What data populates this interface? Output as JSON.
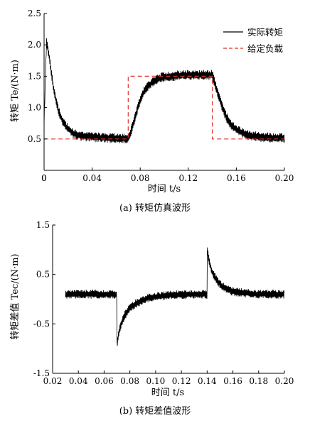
{
  "chart_data": [
    {
      "type": "line",
      "caption": "(a) 转矩仿真波形",
      "xlabel": "时间 t/s",
      "ylabel": "转矩 Te/(N·m)",
      "xlim": [
        0,
        0.2
      ],
      "ylim": [
        0,
        2.5
      ],
      "x_ticks": [
        "0",
        "0.04",
        "0.08",
        "0.12",
        "0.16",
        "0.20"
      ],
      "y_ticks": [
        "0.5",
        "1.0",
        "1.5",
        "2.0",
        "2.5"
      ],
      "legend_position": "top-right",
      "series": [
        {
          "name": "实际转矩",
          "style": "solid",
          "color": "#000000",
          "noise_amplitude": 0.08,
          "x": [
            0.0,
            0.002,
            0.004,
            0.006,
            0.008,
            0.01,
            0.012,
            0.015,
            0.018,
            0.02,
            0.025,
            0.03,
            0.04,
            0.05,
            0.06,
            0.07,
            0.072,
            0.075,
            0.078,
            0.08,
            0.083,
            0.086,
            0.09,
            0.095,
            0.1,
            0.11,
            0.12,
            0.13,
            0.14,
            0.142,
            0.145,
            0.148,
            0.15,
            0.153,
            0.156,
            0.16,
            0.165,
            0.17,
            0.18,
            0.19,
            0.2
          ],
          "values": [
            0.75,
            2.05,
            1.85,
            1.55,
            1.3,
            1.1,
            0.95,
            0.8,
            0.7,
            0.66,
            0.58,
            0.55,
            0.53,
            0.52,
            0.51,
            0.51,
            0.6,
            0.8,
            1.0,
            1.12,
            1.25,
            1.33,
            1.4,
            1.46,
            1.49,
            1.51,
            1.52,
            1.52,
            1.52,
            1.4,
            1.2,
            1.02,
            0.92,
            0.8,
            0.72,
            0.65,
            0.6,
            0.56,
            0.53,
            0.52,
            0.52
          ]
        },
        {
          "name": "给定负载",
          "style": "dashed",
          "color": "#e0302c",
          "x": [
            0.0,
            0.07,
            0.07,
            0.14,
            0.14,
            0.2
          ],
          "values": [
            0.5,
            0.5,
            1.5,
            1.5,
            0.5,
            0.5
          ]
        }
      ]
    },
    {
      "type": "line",
      "caption": "(b) 转矩差值波形",
      "xlabel": "时间 t/s",
      "ylabel": "转矩差值 Tec/(N·m)",
      "xlim": [
        0.02,
        0.2
      ],
      "ylim": [
        -1.5,
        1.5
      ],
      "x_ticks": [
        "0.02",
        "0.04",
        "0.06",
        "0.08",
        "0.10",
        "0.12",
        "0.14",
        "0.16",
        "0.18",
        "0.20"
      ],
      "y_ticks": [
        "-1.5",
        "-0.5",
        "0.5",
        "1.5"
      ],
      "series": [
        {
          "style": "solid",
          "color": "#000000",
          "noise_amplitude": 0.09,
          "x": [
            0.03,
            0.04,
            0.05,
            0.06,
            0.0699,
            0.07,
            0.071,
            0.072,
            0.074,
            0.076,
            0.078,
            0.08,
            0.083,
            0.086,
            0.09,
            0.095,
            0.1,
            0.11,
            0.12,
            0.13,
            0.1399,
            0.14,
            0.141,
            0.142,
            0.144,
            0.146,
            0.148,
            0.15,
            0.153,
            0.156,
            0.16,
            0.17,
            0.18,
            0.19,
            0.2
          ],
          "values": [
            0.1,
            0.1,
            0.1,
            0.1,
            0.1,
            -0.92,
            -0.75,
            -0.62,
            -0.45,
            -0.33,
            -0.25,
            -0.18,
            -0.12,
            -0.07,
            -0.02,
            0.03,
            0.05,
            0.08,
            0.09,
            0.1,
            0.1,
            1.02,
            0.85,
            0.72,
            0.55,
            0.45,
            0.37,
            0.3,
            0.24,
            0.19,
            0.15,
            0.12,
            0.1,
            0.1,
            0.1
          ]
        }
      ]
    }
  ]
}
